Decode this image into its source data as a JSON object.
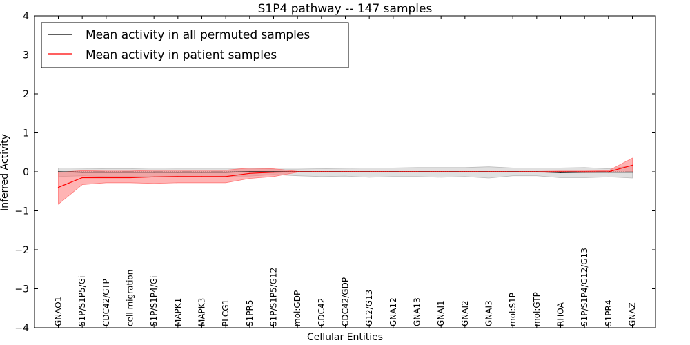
{
  "chart_data": {
    "type": "line",
    "title": "S1P4 pathway -- 147 samples",
    "xlabel": "Cellular Entities",
    "ylabel": "Inferred Activity",
    "ylim": [
      -4,
      4
    ],
    "yticks": [
      -4,
      -3,
      -2,
      -1,
      0,
      1,
      2,
      3,
      4
    ],
    "ytick_labels": [
      "−4",
      "−3",
      "−2",
      "−1",
      "0",
      "1",
      "2",
      "3",
      "4"
    ],
    "categories": [
      "GNAO1",
      "S1P/S1P5/Gi",
      "CDC42/GTP",
      "cell migration",
      "S1P/S1P4/Gi",
      "MAPK1",
      "MAPK3",
      "PLCG1",
      "S1PR5",
      "S1P/S1P5/G12",
      "mol:GDP",
      "CDC42",
      "CDC42/GDP",
      "G12/G13",
      "GNA12",
      "GNA13",
      "GNAI1",
      "GNAI2",
      "GNAI3",
      "mol:S1P",
      "mol:GTP",
      "RHOA",
      "S1P/S1P4/G12/G13",
      "S1PR4",
      "GNAZ"
    ],
    "legend_position": "top-left",
    "series": [
      {
        "name": "Mean activity in all permuted samples",
        "color": "#000000",
        "band_color": "#bbbbbb",
        "values": [
          0.0,
          -0.01,
          -0.01,
          -0.01,
          -0.01,
          -0.01,
          -0.01,
          -0.01,
          0.0,
          0.0,
          0.0,
          0.0,
          0.0,
          0.0,
          0.0,
          0.0,
          0.0,
          0.0,
          0.0,
          0.0,
          0.0,
          -0.02,
          -0.01,
          -0.01,
          -0.01
        ],
        "lower": [
          -0.12,
          -0.1,
          -0.12,
          -0.12,
          -0.12,
          -0.11,
          -0.12,
          -0.11,
          -0.11,
          -0.07,
          -0.1,
          -0.12,
          -0.11,
          -0.14,
          -0.12,
          -0.12,
          -0.14,
          -0.12,
          -0.16,
          -0.1,
          -0.1,
          -0.15,
          -0.15,
          -0.13,
          -0.16
        ],
        "upper": [
          0.1,
          0.09,
          0.08,
          0.08,
          0.1,
          0.09,
          0.09,
          0.09,
          0.09,
          0.07,
          0.07,
          0.08,
          0.09,
          0.1,
          0.1,
          0.11,
          0.11,
          0.11,
          0.13,
          0.1,
          0.1,
          0.1,
          0.11,
          0.08,
          0.15
        ]
      },
      {
        "name": "Mean activity in patient samples",
        "color": "#ff0000",
        "band_color": "#ff7777",
        "values": [
          -0.4,
          -0.15,
          -0.15,
          -0.15,
          -0.13,
          -0.12,
          -0.12,
          -0.12,
          -0.04,
          -0.01,
          0.0,
          0.0,
          0.0,
          0.0,
          0.0,
          0.0,
          0.0,
          0.0,
          0.0,
          0.0,
          0.0,
          0.0,
          0.0,
          0.0,
          0.17
        ],
        "lower": [
          -0.83,
          -0.33,
          -0.28,
          -0.28,
          -0.3,
          -0.28,
          -0.28,
          -0.28,
          -0.17,
          -0.12,
          -0.01,
          -0.01,
          -0.01,
          -0.01,
          -0.01,
          -0.01,
          -0.01,
          -0.01,
          -0.01,
          -0.01,
          -0.01,
          -0.02,
          -0.02,
          -0.01,
          -0.01
        ],
        "upper": [
          -0.01,
          0.03,
          0.02,
          0.02,
          0.04,
          0.04,
          0.04,
          0.04,
          0.1,
          0.08,
          0.01,
          0.01,
          0.01,
          0.01,
          0.01,
          0.01,
          0.01,
          0.01,
          0.01,
          0.01,
          0.01,
          0.02,
          0.02,
          0.03,
          0.35
        ]
      }
    ]
  }
}
